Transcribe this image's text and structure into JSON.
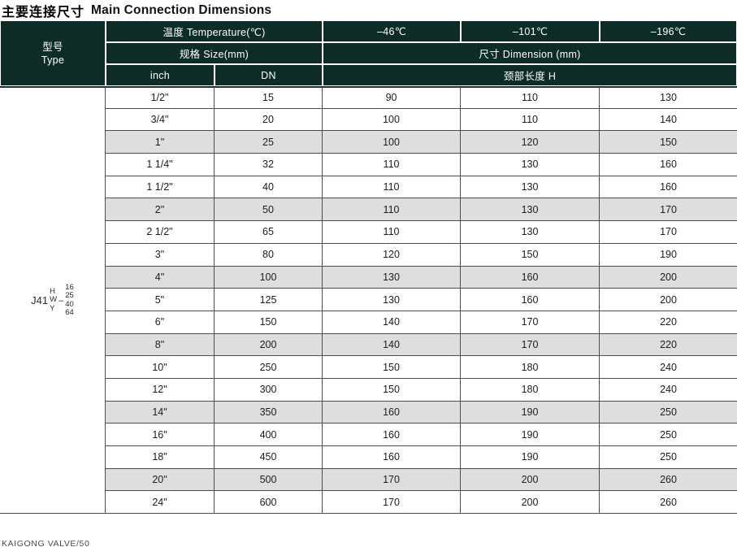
{
  "title": {
    "cn": "主要连接尺寸",
    "en": "Main Connection Dimensions"
  },
  "footer": "KAIGONG VALVE/50",
  "colors": {
    "header_bg": "#0d2c27",
    "shaded_row": "#dedede",
    "body_border": "#4d4d4d"
  },
  "table": {
    "header": {
      "type_cn": "型号",
      "type_en": "Type",
      "temperature": "温度 Temperature(℃)",
      "size": "规格 Size(mm)",
      "dimension": "尺寸 Dimension (mm)",
      "inch": "inch",
      "dn": "DN",
      "neck": "颈部长度 H",
      "temps": [
        "–46℃",
        "–101℃",
        "–196℃"
      ]
    },
    "model": {
      "prefix": "J41",
      "letters": [
        "H",
        "W",
        "Y"
      ],
      "dash": "–",
      "ratings": [
        "16",
        "25",
        "40",
        "64"
      ]
    },
    "rows": [
      {
        "values": [
          "1/2\"",
          "15",
          "90",
          "110",
          "130"
        ]
      },
      {
        "values": [
          "3/4\"",
          "20",
          "100",
          "110",
          "140"
        ]
      },
      {
        "values": [
          "1\"",
          "25",
          "100",
          "120",
          "150"
        ]
      },
      {
        "values": [
          "1 1/4\"",
          "32",
          "110",
          "130",
          "160"
        ]
      },
      {
        "values": [
          "1 1/2\"",
          "40",
          "110",
          "130",
          "160"
        ]
      },
      {
        "values": [
          "2\"",
          "50",
          "110",
          "130",
          "170"
        ]
      },
      {
        "values": [
          "2 1/2\"",
          "65",
          "110",
          "130",
          "170"
        ]
      },
      {
        "values": [
          "3\"",
          "80",
          "120",
          "150",
          "190"
        ]
      },
      {
        "values": [
          "4\"",
          "100",
          "130",
          "160",
          "200"
        ]
      },
      {
        "values": [
          "5\"",
          "125",
          "130",
          "160",
          "200"
        ]
      },
      {
        "values": [
          "6\"",
          "150",
          "140",
          "170",
          "220"
        ]
      },
      {
        "values": [
          "8\"",
          "200",
          "140",
          "170",
          "220"
        ]
      },
      {
        "values": [
          "10\"",
          "250",
          "150",
          "180",
          "240"
        ]
      },
      {
        "values": [
          "12\"",
          "300",
          "150",
          "180",
          "240"
        ]
      },
      {
        "values": [
          "14\"",
          "350",
          "160",
          "190",
          "250"
        ]
      },
      {
        "values": [
          "16\"",
          "400",
          "160",
          "190",
          "250"
        ]
      },
      {
        "values": [
          "18\"",
          "450",
          "160",
          "190",
          "250"
        ]
      },
      {
        "values": [
          "20\"",
          "500",
          "170",
          "200",
          "260"
        ]
      },
      {
        "values": [
          "24\"",
          "600",
          "170",
          "200",
          "260"
        ]
      }
    ]
  }
}
